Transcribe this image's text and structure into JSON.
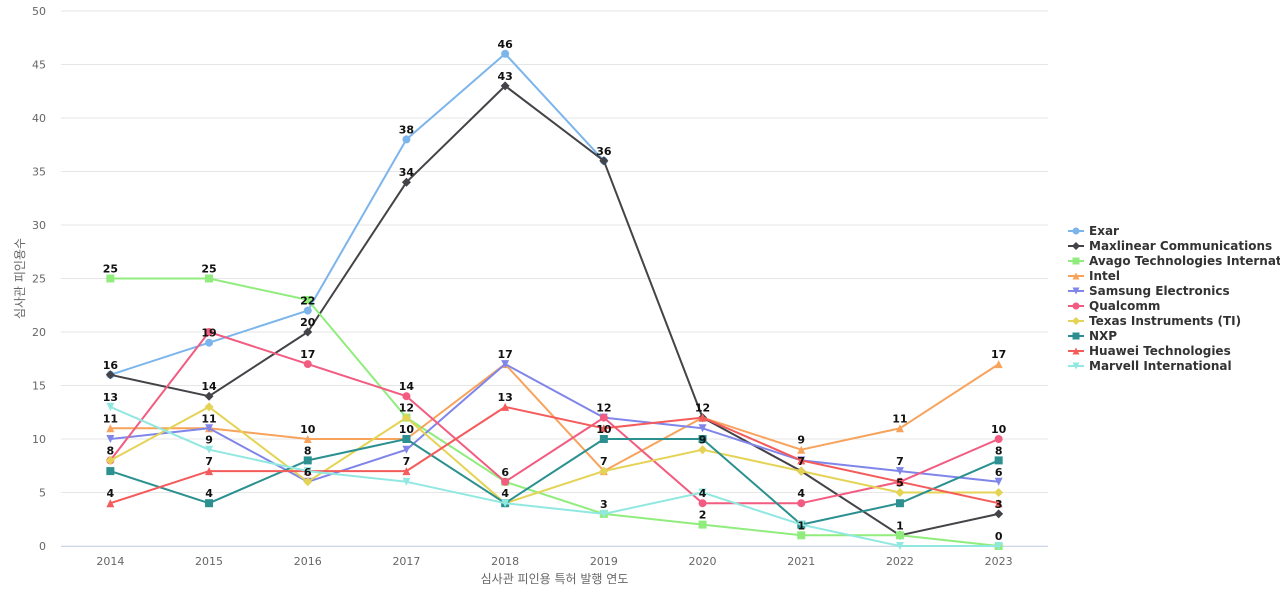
{
  "chart_data": {
    "type": "line",
    "title": "",
    "xlabel": "심사관 피인용 특허 발행 연도",
    "ylabel": "심사관 피인용수",
    "categories": [
      "2014",
      "2015",
      "2016",
      "2017",
      "2018",
      "2019",
      "2020",
      "2021",
      "2022",
      "2023"
    ],
    "ylim": [
      0,
      50
    ],
    "yticks": [
      0,
      5,
      10,
      15,
      20,
      25,
      30,
      35,
      40,
      45,
      50
    ],
    "grid": true,
    "legend_position": "right",
    "series": [
      {
        "name": "Exar",
        "color": "#7cb5ec",
        "marker": "circle",
        "values": [
          16,
          19,
          22,
          38,
          46,
          36,
          null,
          null,
          null,
          null
        ]
      },
      {
        "name": "Maxlinear Communications",
        "color": "#434348",
        "marker": "diamond",
        "values": [
          16,
          14,
          20,
          34,
          43,
          36,
          12,
          7,
          1,
          3
        ]
      },
      {
        "name": "Avago Technologies Internat...",
        "color": "#90ed7d",
        "marker": "square",
        "values": [
          25,
          25,
          23,
          12,
          6,
          3,
          2,
          1,
          1,
          0
        ]
      },
      {
        "name": "Intel",
        "color": "#f7a35c",
        "marker": "triangle",
        "values": [
          11,
          11,
          10,
          10,
          17,
          7,
          12,
          9,
          11,
          17
        ]
      },
      {
        "name": "Samsung Electronics",
        "color": "#8085e9",
        "marker": "triangle-down",
        "values": [
          10,
          11,
          6,
          9,
          17,
          12,
          11,
          8,
          7,
          6
        ]
      },
      {
        "name": "Qualcomm",
        "color": "#f15c80",
        "marker": "circle",
        "values": [
          8,
          20,
          17,
          14,
          6,
          12,
          4,
          4,
          6,
          10
        ]
      },
      {
        "name": "Texas Instruments (TI)",
        "color": "#e4d354",
        "marker": "diamond",
        "values": [
          8,
          13,
          6,
          12,
          4,
          7,
          9,
          7,
          5,
          5
        ]
      },
      {
        "name": "NXP",
        "color": "#2b908f",
        "marker": "square",
        "values": [
          7,
          4,
          8,
          10,
          4,
          10,
          10,
          2,
          4,
          8
        ]
      },
      {
        "name": "Huawei Technologies",
        "color": "#f45b5b",
        "marker": "triangle",
        "values": [
          4,
          7,
          7,
          7,
          13,
          11,
          12,
          8,
          6,
          4
        ]
      },
      {
        "name": "Marvell International",
        "color": "#91e8e1",
        "marker": "triangle-down",
        "values": [
          13,
          9,
          7,
          6,
          4,
          3,
          5,
          2,
          0,
          0
        ]
      }
    ],
    "data_labels": [
      {
        "x": "2014",
        "y": 25,
        "text": "25"
      },
      {
        "x": "2014",
        "y": 16,
        "text": "16"
      },
      {
        "x": "2014",
        "y": 13,
        "text": "13"
      },
      {
        "x": "2014",
        "y": 11,
        "text": "11"
      },
      {
        "x": "2014",
        "y": 8,
        "text": "8"
      },
      {
        "x": "2014",
        "y": 4,
        "text": "4"
      },
      {
        "x": "2015",
        "y": 25,
        "text": "25"
      },
      {
        "x": "2015",
        "y": 19,
        "text": "19"
      },
      {
        "x": "2015",
        "y": 14,
        "text": "14"
      },
      {
        "x": "2015",
        "y": 11,
        "text": "11"
      },
      {
        "x": "2015",
        "y": 9,
        "text": "9"
      },
      {
        "x": "2015",
        "y": 7,
        "text": "7"
      },
      {
        "x": "2015",
        "y": 4,
        "text": "4"
      },
      {
        "x": "2016",
        "y": 22,
        "text": "22"
      },
      {
        "x": "2016",
        "y": 20,
        "text": "20"
      },
      {
        "x": "2016",
        "y": 17,
        "text": "17"
      },
      {
        "x": "2016",
        "y": 10,
        "text": "10"
      },
      {
        "x": "2016",
        "y": 8,
        "text": "8"
      },
      {
        "x": "2016",
        "y": 6,
        "text": "6"
      },
      {
        "x": "2017",
        "y": 38,
        "text": "38"
      },
      {
        "x": "2017",
        "y": 34,
        "text": "34"
      },
      {
        "x": "2017",
        "y": 14,
        "text": "14"
      },
      {
        "x": "2017",
        "y": 12,
        "text": "12"
      },
      {
        "x": "2017",
        "y": 10,
        "text": "10"
      },
      {
        "x": "2017",
        "y": 7,
        "text": "7"
      },
      {
        "x": "2018",
        "y": 46,
        "text": "46"
      },
      {
        "x": "2018",
        "y": 43,
        "text": "43"
      },
      {
        "x": "2018",
        "y": 17,
        "text": "17"
      },
      {
        "x": "2018",
        "y": 13,
        "text": "13"
      },
      {
        "x": "2018",
        "y": 6,
        "text": "6"
      },
      {
        "x": "2018",
        "y": 4,
        "text": "4"
      },
      {
        "x": "2019",
        "y": 36,
        "text": "36"
      },
      {
        "x": "2019",
        "y": 12,
        "text": "12"
      },
      {
        "x": "2019",
        "y": 10,
        "text": "10"
      },
      {
        "x": "2019",
        "y": 7,
        "text": "7"
      },
      {
        "x": "2019",
        "y": 3,
        "text": "3"
      },
      {
        "x": "2020",
        "y": 12,
        "text": "12"
      },
      {
        "x": "2020",
        "y": 9,
        "text": "9"
      },
      {
        "x": "2020",
        "y": 4,
        "text": "4"
      },
      {
        "x": "2020",
        "y": 2,
        "text": "2"
      },
      {
        "x": "2021",
        "y": 9,
        "text": "9"
      },
      {
        "x": "2021",
        "y": 7,
        "text": "7"
      },
      {
        "x": "2021",
        "y": 4,
        "text": "4"
      },
      {
        "x": "2021",
        "y": 1,
        "text": "1"
      },
      {
        "x": "2022",
        "y": 11,
        "text": "11"
      },
      {
        "x": "2022",
        "y": 7,
        "text": "7"
      },
      {
        "x": "2022",
        "y": 5,
        "text": "5"
      },
      {
        "x": "2022",
        "y": 1,
        "text": "1"
      },
      {
        "x": "2023",
        "y": 17,
        "text": "17"
      },
      {
        "x": "2023",
        "y": 10,
        "text": "10"
      },
      {
        "x": "2023",
        "y": 8,
        "text": "8"
      },
      {
        "x": "2023",
        "y": 6,
        "text": "6"
      },
      {
        "x": "2023",
        "y": 3,
        "text": "3"
      },
      {
        "x": "2023",
        "y": 0,
        "text": "0"
      }
    ]
  }
}
